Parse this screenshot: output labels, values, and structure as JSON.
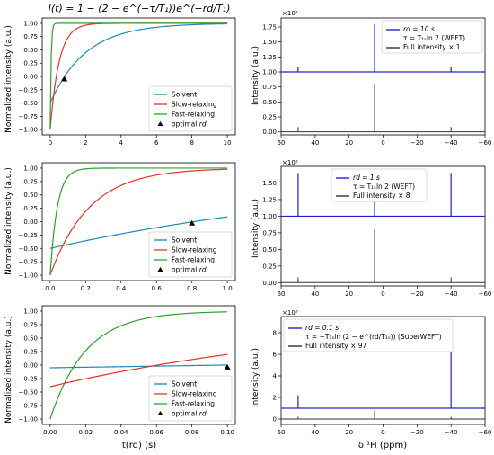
{
  "figure": {
    "title": "I(t) = 1 − (2 − e^(−τ/T₁))e^(−rd/T₁)",
    "left_ylabel": "Normalized intensity (a.u.)",
    "left_xlabel": "t(rd) (s)",
    "right_ylabel": "Intensity (a.u.)",
    "right_xlabel": "δ ¹H (ppm)",
    "exponent_label": "×10⁶"
  },
  "chart_data": [
    {
      "id": "decay_rd10",
      "type": "line",
      "x_range": [
        0,
        10
      ],
      "y_range": [
        -1.0,
        1.0
      ],
      "x_ticks": [
        0,
        2,
        4,
        6,
        8,
        10
      ],
      "x_tick_labels": [
        "0",
        "2",
        "4",
        "6",
        "8",
        "10"
      ],
      "y_ticks": [
        -1.0,
        -0.75,
        -0.5,
        -0.25,
        0.0,
        0.25,
        0.5,
        0.75,
        1.0
      ],
      "y_tick_labels": [
        "−1.00",
        "−0.75",
        "−0.50",
        "−0.25",
        "0.00",
        "0.25",
        "0.50",
        "0.75",
        "1.00"
      ],
      "series": [
        {
          "name": "Solvent",
          "color": "#1f88b4",
          "model": {
            "a": 1.5,
            "T": 2.0
          }
        },
        {
          "name": "Slow-relaxing",
          "color": "#e8312a",
          "model": {
            "a": 2.0,
            "T": 0.5
          }
        },
        {
          "name": "Fast-relaxing",
          "color": "#2ca02c",
          "model": {
            "a": 2.0,
            "T": 0.05
          }
        }
      ],
      "marker": {
        "name": "optimal rd",
        "x": 0.8,
        "y": -0.05
      },
      "legend_position": "lower-right"
    },
    {
      "id": "decay_rd1",
      "type": "line",
      "x_range": [
        0,
        1
      ],
      "y_range": [
        -1.0,
        1.0
      ],
      "x_ticks": [
        0,
        0.2,
        0.4,
        0.6,
        0.8,
        1.0
      ],
      "x_tick_labels": [
        "0.0",
        "0.2",
        "0.4",
        "0.6",
        "0.8",
        "1.0"
      ],
      "y_ticks": [
        -1.0,
        -0.75,
        -0.5,
        -0.25,
        0.0,
        0.25,
        0.5,
        0.75,
        1.0
      ],
      "y_tick_labels": [
        "−1.00",
        "−0.75",
        "−0.50",
        "−0.25",
        "0.00",
        "0.25",
        "0.50",
        "0.75",
        "1.00"
      ],
      "series": [
        {
          "name": "Solvent",
          "color": "#1f88b4",
          "model": {
            "a": 1.5,
            "T": 2.0
          }
        },
        {
          "name": "Slow-relaxing",
          "color": "#e8312a",
          "model": {
            "a": 2.0,
            "T": 0.22
          }
        },
        {
          "name": "Fast-relaxing",
          "color": "#2ca02c",
          "model": {
            "a": 2.0,
            "T": 0.04
          }
        }
      ],
      "marker": {
        "name": "optimal rd",
        "x": 0.8,
        "y": -0.03
      },
      "legend_position": "lower-right"
    },
    {
      "id": "decay_rd01",
      "type": "line",
      "x_range": [
        0,
        0.1
      ],
      "y_range": [
        -1.0,
        1.0
      ],
      "x_ticks": [
        0,
        0.02,
        0.04,
        0.06,
        0.08,
        0.1
      ],
      "x_tick_labels": [
        "0.00",
        "0.02",
        "0.04",
        "0.06",
        "0.08",
        "0.10"
      ],
      "y_ticks": [
        -1.0,
        -0.75,
        -0.5,
        -0.25,
        0.0,
        0.25,
        0.5,
        0.75,
        1.0
      ],
      "y_tick_labels": [
        "−1.00",
        "−0.75",
        "−0.50",
        "−0.25",
        "0.00",
        "0.25",
        "0.50",
        "0.75",
        "1.00"
      ],
      "series": [
        {
          "name": "Solvent",
          "color": "#1f88b4",
          "model": {
            "a": 1.05,
            "T": 2.0
          }
        },
        {
          "name": "Slow-relaxing",
          "color": "#e8312a",
          "model": {
            "a": 1.4,
            "T": 0.18
          }
        },
        {
          "name": "Fast-relaxing",
          "color": "#2ca02c",
          "model": {
            "a": 2.0,
            "T": 0.02
          }
        }
      ],
      "marker": {
        "name": "optimal rd",
        "x": 0.1,
        "y": -0.04
      },
      "legend_position": "lower-right"
    },
    {
      "id": "spectrum_rd10",
      "type": "line",
      "x_range": [
        60,
        -60
      ],
      "y_range": [
        -0.05,
        1.9
      ],
      "x_ticks": [
        60,
        40,
        20,
        0,
        -20,
        -40,
        -60
      ],
      "x_tick_labels": [
        "60",
        "40",
        "20",
        "0",
        "−20",
        "−40",
        "−60"
      ],
      "y_ticks": [
        0.0,
        0.25,
        0.5,
        0.75,
        1.0,
        1.25,
        1.5,
        1.75
      ],
      "y_tick_labels": [
        "0.00",
        "0.25",
        "0.50",
        "0.75",
        "1.00",
        "1.25",
        "1.50",
        "1.75"
      ],
      "offset": 1.0,
      "peaks_blue": [
        {
          "x": 50,
          "h": 0.08
        },
        {
          "x": 5,
          "h": 0.8
        },
        {
          "x": -40,
          "h": 0.08
        }
      ],
      "peaks_gray": [
        {
          "x": 50,
          "h": 0.08
        },
        {
          "x": 5,
          "h": 0.8
        },
        {
          "x": -40,
          "h": 0.08
        }
      ],
      "legend": {
        "line1": "rd = 10 s",
        "line2": "τ = T₁ₛln 2 (WEFT)",
        "line3": "Full intensity × 1"
      },
      "legend_position": "top-right"
    },
    {
      "id": "spectrum_rd1",
      "type": "line",
      "x_range": [
        60,
        -60
      ],
      "y_range": [
        -0.05,
        1.75
      ],
      "x_ticks": [
        60,
        40,
        20,
        0,
        -20,
        -40,
        -60
      ],
      "x_tick_labels": [
        "60",
        "40",
        "20",
        "0",
        "−20",
        "−40",
        "−60"
      ],
      "y_ticks": [
        0.0,
        0.25,
        0.5,
        0.75,
        1.0,
        1.25,
        1.5
      ],
      "y_tick_labels": [
        "0.00",
        "0.25",
        "0.50",
        "0.75",
        "1.00",
        "1.25",
        "1.50"
      ],
      "offset": 1.0,
      "peaks_blue": [
        {
          "x": 50,
          "h": 0.65
        },
        {
          "x": 5,
          "h": 0.65
        },
        {
          "x": -40,
          "h": 0.65
        }
      ],
      "peaks_gray": [
        {
          "x": 50,
          "h": 0.08
        },
        {
          "x": 5,
          "h": 0.8
        },
        {
          "x": -40,
          "h": 0.08
        }
      ],
      "legend": {
        "line1": "rd = 1 s",
        "line2": "τ = T₁ₛln 2 (WEFT)",
        "line3": "Full intensity × 8"
      },
      "legend_position": "upper-center"
    },
    {
      "id": "spectrum_rd01",
      "type": "line",
      "x_range": [
        60,
        -60
      ],
      "y_range": [
        -0.5,
        9.5
      ],
      "x_ticks": [
        60,
        40,
        20,
        0,
        -20,
        -40,
        -60
      ],
      "x_tick_labels": [
        "60",
        "40",
        "20",
        "0",
        "−20",
        "−40",
        "−60"
      ],
      "y_ticks": [
        0,
        2,
        4,
        6,
        8
      ],
      "y_tick_labels": [
        "0",
        "2",
        "4",
        "6",
        "8"
      ],
      "offset": 1.0,
      "peaks_blue": [
        {
          "x": 50,
          "h": 1.2
        },
        {
          "x": -40,
          "h": 7.8
        }
      ],
      "peaks_gray": [
        {
          "x": 50,
          "h": 0.2
        },
        {
          "x": 5,
          "h": 0.8
        },
        {
          "x": -40,
          "h": 0.2
        }
      ],
      "legend": {
        "line1": "rd = 0.1 s",
        "line2": "τ = −T₁ₛln (2 − e^(rd/T₁ₛ)) (SuperWEFT)",
        "line3": "Full intensity × 97"
      },
      "legend_position": "top-left"
    }
  ]
}
